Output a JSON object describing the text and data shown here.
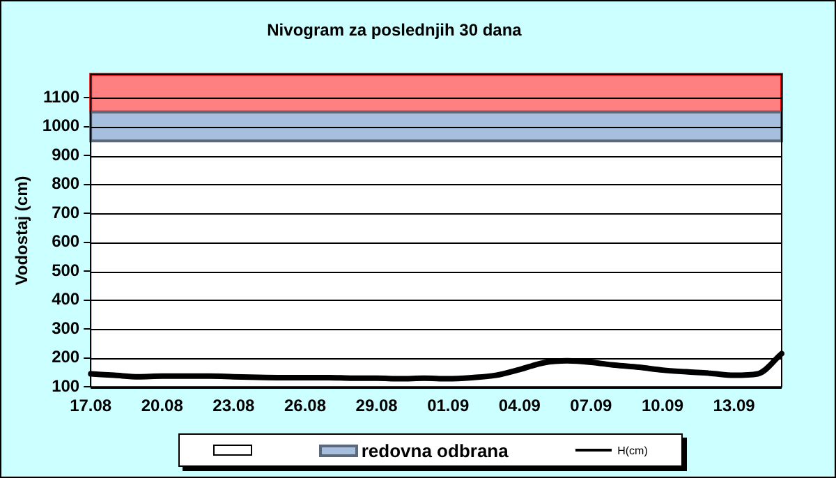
{
  "chart_data": {
    "type": "line",
    "title": "Nivogram za poslednjih 30 dana",
    "ylabel": "Vodostaj (cm)",
    "categories": [
      "17.08",
      null,
      null,
      "20.08",
      null,
      null,
      "23.08",
      null,
      null,
      "26.08",
      null,
      null,
      "29.08",
      null,
      null,
      "01.09",
      null,
      null,
      "04.09",
      null,
      null,
      "07.09",
      null,
      null,
      "10.09",
      null,
      null,
      "13.09",
      null,
      null
    ],
    "series": [
      {
        "name": "H(cm)",
        "color": "#000000",
        "values": [
          145,
          140,
          135,
          137,
          137,
          137,
          135,
          133,
          132,
          132,
          132,
          130,
          130,
          128,
          130,
          128,
          132,
          140,
          160,
          183,
          190,
          185,
          175,
          168,
          158,
          152,
          147,
          140,
          145,
          215
        ]
      }
    ],
    "ylim": [
      100,
      1180
    ],
    "yticks": [
      100,
      200,
      300,
      400,
      500,
      600,
      700,
      800,
      900,
      1000,
      1100
    ],
    "bands": [
      {
        "axis": "y",
        "from": 1050,
        "to": 1180,
        "color": "#ff8080"
      },
      {
        "axis": "y",
        "from": 950,
        "to": 1050,
        "color": "#a6bfdf",
        "label": "redovna odbrana"
      }
    ],
    "grid": "y",
    "legend": "bottom",
    "marker": "none",
    "line_style": "solid"
  }
}
